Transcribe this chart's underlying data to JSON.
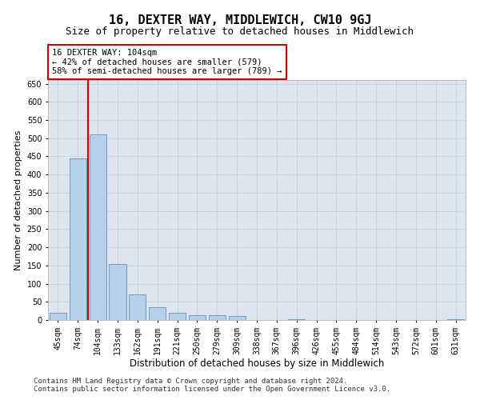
{
  "title": "16, DEXTER WAY, MIDDLEWICH, CW10 9GJ",
  "subtitle": "Size of property relative to detached houses in Middlewich",
  "xlabel": "Distribution of detached houses by size in Middlewich",
  "ylabel": "Number of detached properties",
  "categories": [
    "45sqm",
    "74sqm",
    "104sqm",
    "133sqm",
    "162sqm",
    "191sqm",
    "221sqm",
    "250sqm",
    "279sqm",
    "309sqm",
    "338sqm",
    "367sqm",
    "396sqm",
    "426sqm",
    "455sqm",
    "484sqm",
    "514sqm",
    "543sqm",
    "572sqm",
    "601sqm",
    "631sqm"
  ],
  "values": [
    19,
    445,
    510,
    155,
    70,
    35,
    20,
    13,
    13,
    10,
    0,
    0,
    3,
    0,
    0,
    0,
    0,
    0,
    0,
    0,
    2
  ],
  "bar_color": "#b8cfe8",
  "bar_edge_color": "#6090c0",
  "red_line_color": "#cc0000",
  "annotation_text": "16 DEXTER WAY: 104sqm\n← 42% of detached houses are smaller (579)\n58% of semi-detached houses are larger (789) →",
  "annotation_box_color": "#ffffff",
  "annotation_box_edge": "#cc0000",
  "ylim": [
    0,
    660
  ],
  "yticks": [
    0,
    50,
    100,
    150,
    200,
    250,
    300,
    350,
    400,
    450,
    500,
    550,
    600,
    650
  ],
  "background_color": "#dde6f0",
  "grid_color": "#c0ccd8",
  "footer_line1": "Contains HM Land Registry data © Crown copyright and database right 2024.",
  "footer_line2": "Contains public sector information licensed under the Open Government Licence v3.0.",
  "title_fontsize": 11,
  "subtitle_fontsize": 9,
  "xlabel_fontsize": 8.5,
  "ylabel_fontsize": 8,
  "tick_fontsize": 7,
  "annot_fontsize": 7.5,
  "footer_fontsize": 6.5
}
